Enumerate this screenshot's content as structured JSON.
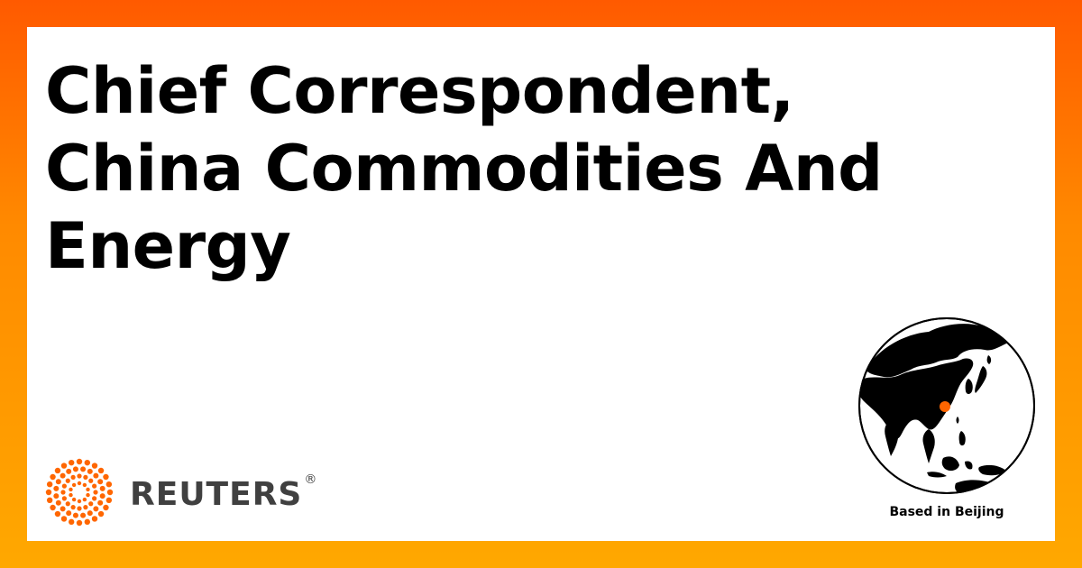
{
  "headline": {
    "lines": [
      "Chief Correspondent,",
      "China Commodities And",
      "Energy"
    ]
  },
  "brand": {
    "name": "REUTERS",
    "registered": "®",
    "accent_color": "#FF6600",
    "text_color": "#404040"
  },
  "location": {
    "label": "Based in Beijing",
    "marker_icon": "location-dot-icon",
    "globe_icon": "globe-icon"
  },
  "colors": {
    "background_top": "#FF5A00",
    "background_bottom": "#FFA800",
    "card": "#FFFFFF",
    "text": "#000000"
  }
}
